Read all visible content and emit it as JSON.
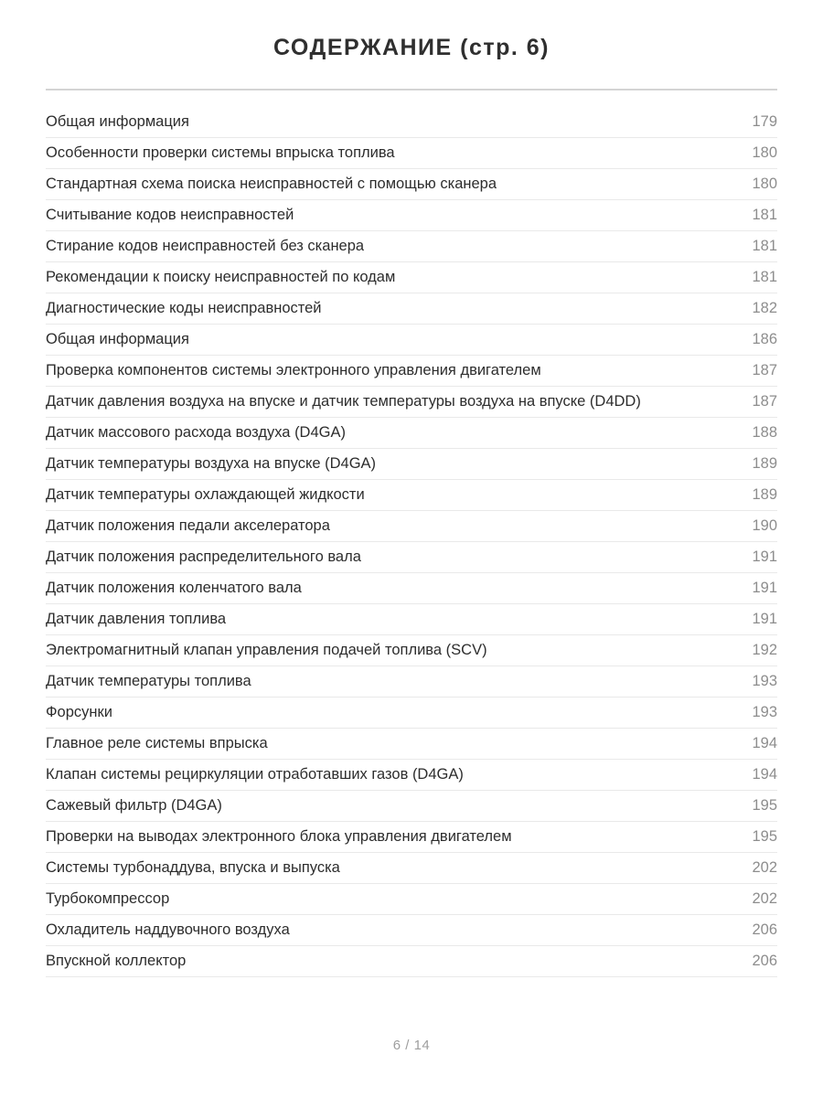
{
  "page": {
    "title": "СОДЕРЖАНИЕ (стр. 6)",
    "footer": "6 / 14"
  },
  "colors": {
    "text": "#2d2d2d",
    "page_number": "#8d8d8d",
    "divider": "#e9e9e9",
    "title_divider": "#d4d4d4",
    "background": "#ffffff"
  },
  "toc": {
    "entries": [
      {
        "label": "Общая информация",
        "page": "179"
      },
      {
        "label": "Особенности проверки системы впрыска топлива",
        "page": "180"
      },
      {
        "label": "Стандартная схема поиска неисправностей с помощью сканера",
        "page": "180"
      },
      {
        "label": "Считывание кодов неисправностей",
        "page": "181"
      },
      {
        "label": "Стирание кодов неисправностей без сканера",
        "page": "181"
      },
      {
        "label": "Рекомендации к поиску неисправностей по кодам",
        "page": "181"
      },
      {
        "label": "Диагностические коды неисправностей",
        "page": "182"
      },
      {
        "label": "Общая информация",
        "page": "186"
      },
      {
        "label": "Проверка компонентов системы электронного управления двигателем",
        "page": "187"
      },
      {
        "label": "Датчик давления воздуха на впуске и датчик температуры воздуха на впуске (D4DD)",
        "page": "187"
      },
      {
        "label": "Датчик массового расхода воздуха (D4GA)",
        "page": "188"
      },
      {
        "label": "Датчик температуры воздуха на впуске (D4GA)",
        "page": "189"
      },
      {
        "label": "Датчик температуры охлаждающей жидкости",
        "page": "189"
      },
      {
        "label": "Датчик положения педали акселератора",
        "page": "190"
      },
      {
        "label": "Датчик положения распределительного вала",
        "page": "191"
      },
      {
        "label": "Датчик положения коленчатого вала",
        "page": "191"
      },
      {
        "label": "Датчик давления топлива",
        "page": "191"
      },
      {
        "label": "Электромагнитный клапан управления подачей топлива (SCV)",
        "page": "192"
      },
      {
        "label": "Датчик температуры топлива",
        "page": "193"
      },
      {
        "label": "Форсунки",
        "page": "193"
      },
      {
        "label": "Главное реле системы впрыска",
        "page": "194"
      },
      {
        "label": "Клапан системы рециркуляции отработавших газов (D4GA)",
        "page": "194"
      },
      {
        "label": "Сажевый фильтр (D4GA)",
        "page": "195"
      },
      {
        "label": "Проверки на выводах электронного блока управления двигателем",
        "page": "195"
      },
      {
        "label": "Системы турбонаддува, впуска и выпуска",
        "page": "202"
      },
      {
        "label": "Турбокомпрессор",
        "page": "202"
      },
      {
        "label": "Охладитель наддувочного воздуха",
        "page": "206"
      },
      {
        "label": "Впускной коллектор",
        "page": "206"
      }
    ]
  }
}
